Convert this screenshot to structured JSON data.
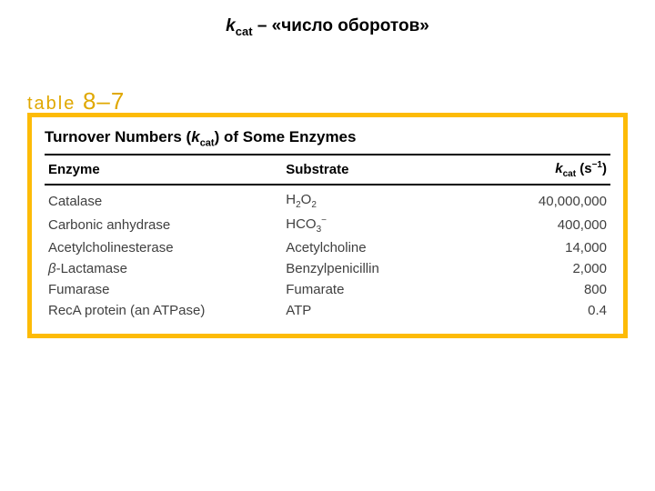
{
  "page": {
    "title_prefix_k": "k",
    "title_prefix_sub": "cat",
    "title_rest": " – «число оборотов»"
  },
  "tableLabel": {
    "word": "table ",
    "number": "8–7"
  },
  "tableTitle": {
    "pre": "Turnover Numbers (",
    "k": "k",
    "ksub": "cat",
    "post": ") of Some Enzymes"
  },
  "headers": {
    "enzyme": "Enzyme",
    "substrate": "Substrate",
    "kcat_k": "k",
    "kcat_sub": "cat",
    "kcat_unit_open": " (s",
    "kcat_unit_exp": "−1",
    "kcat_unit_close": ")"
  },
  "rows": [
    {
      "enzyme": "Catalase",
      "substrate_pre": "H",
      "substrate_sub1": "2",
      "substrate_mid": "O",
      "substrate_sub2": "2",
      "substrate_post": "",
      "value": "40,000,000"
    },
    {
      "enzyme": "Carbonic anhydrase",
      "substrate_pre": "HCO",
      "substrate_sub1": "3",
      "substrate_mid": "",
      "substrate_sub2": "",
      "substrate_sup": "−",
      "substrate_post": "",
      "value": "400,000"
    },
    {
      "enzyme": "Acetylcholinesterase",
      "substrate_plain": "Acetylcholine",
      "value": "14,000"
    },
    {
      "enzyme_ital": "β",
      "enzyme_rest": "-Lactamase",
      "substrate_plain": "Benzylpenicillin",
      "value": "2,000"
    },
    {
      "enzyme": "Fumarase",
      "substrate_plain": "Fumarate",
      "value": "800"
    },
    {
      "enzyme": "RecA protein (an ATPase)",
      "substrate_plain": "ATP",
      "value": "0.4"
    }
  ],
  "style": {
    "border_color": "#fdbb07",
    "label_color": "#e0a800",
    "text_color": "#404040"
  }
}
